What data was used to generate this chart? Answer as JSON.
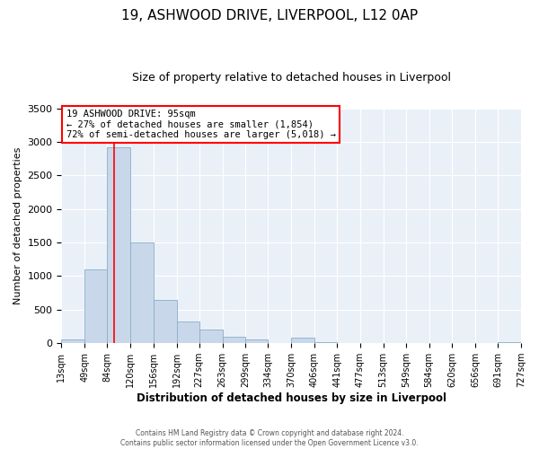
{
  "title": "19, ASHWOOD DRIVE, LIVERPOOL, L12 0AP",
  "subtitle": "Size of property relative to detached houses in Liverpool",
  "xlabel": "Distribution of detached houses by size in Liverpool",
  "ylabel": "Number of detached properties",
  "bar_color": "#c8d8ea",
  "bar_edge_color": "#8aaec8",
  "background_color": "#eaf0f8",
  "grid_color": "white",
  "vline_x": 95,
  "vline_color": "red",
  "annotation_title": "19 ASHWOOD DRIVE: 95sqm",
  "annotation_line1": "← 27% of detached houses are smaller (1,854)",
  "annotation_line2": "72% of semi-detached houses are larger (5,018) →",
  "bin_edges": [
    13,
    49,
    84,
    120,
    156,
    192,
    227,
    263,
    299,
    334,
    370,
    406,
    441,
    477,
    513,
    549,
    584,
    620,
    656,
    691,
    727
  ],
  "bar_heights": [
    50,
    1100,
    2920,
    1500,
    650,
    330,
    200,
    100,
    50,
    0,
    80,
    20,
    0,
    0,
    0,
    0,
    0,
    0,
    0,
    20
  ],
  "ylim": [
    0,
    3500
  ],
  "yticks": [
    0,
    500,
    1000,
    1500,
    2000,
    2500,
    3000,
    3500
  ],
  "tick_labels": [
    "13sqm",
    "49sqm",
    "84sqm",
    "120sqm",
    "156sqm",
    "192sqm",
    "227sqm",
    "263sqm",
    "299sqm",
    "334sqm",
    "370sqm",
    "406sqm",
    "441sqm",
    "477sqm",
    "513sqm",
    "549sqm",
    "584sqm",
    "620sqm",
    "656sqm",
    "691sqm",
    "727sqm"
  ],
  "footer_line1": "Contains HM Land Registry data © Crown copyright and database right 2024.",
  "footer_line2": "Contains public sector information licensed under the Open Government Licence v3.0."
}
